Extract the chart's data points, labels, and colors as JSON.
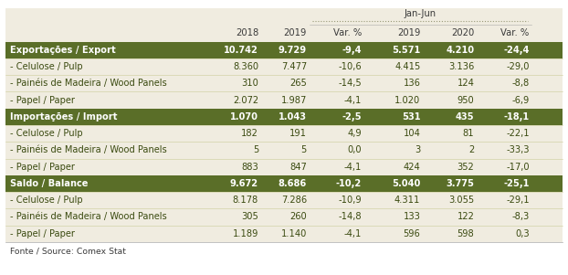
{
  "header_bg": "#f0ece0",
  "header_text": "#3a3a3a",
  "bold_row_bg": "#5a6e28",
  "bold_row_text": "#ffffff",
  "normal_row_text": "#3a4a10",
  "footer_text": "#3a3a3a",
  "title_2018": "2018",
  "title_2019": "2019",
  "title_var": "Var. %",
  "title_janjun": "Jan-Jun",
  "title_janjun_2019": "2019",
  "title_janjun_2020": "2020",
  "title_janjun_var": "Var. %",
  "footer": "Fonte / Source: Comex Stat",
  "rows": [
    {
      "label": "Exportações / Export",
      "bold": true,
      "v2018": "10.742",
      "v2019": "9.729",
      "var": "-9,4",
      "jj2019": "5.571",
      "jj2020": "4.210",
      "jjvar": "-24,4"
    },
    {
      "label": "- Celulose / Pulp",
      "bold": false,
      "v2018": "8.360",
      "v2019": "7.477",
      "var": "-10,6",
      "jj2019": "4.415",
      "jj2020": "3.136",
      "jjvar": "-29,0"
    },
    {
      "label": "- Painéis de Madeira / Wood Panels",
      "bold": false,
      "v2018": "310",
      "v2019": "265",
      "var": "-14,5",
      "jj2019": "136",
      "jj2020": "124",
      "jjvar": "-8,8"
    },
    {
      "label": "- Papel / Paper",
      "bold": false,
      "v2018": "2.072",
      "v2019": "1.987",
      "var": "-4,1",
      "jj2019": "1.020",
      "jj2020": "950",
      "jjvar": "-6,9"
    },
    {
      "label": "Importações / Import",
      "bold": true,
      "v2018": "1.070",
      "v2019": "1.043",
      "var": "-2,5",
      "jj2019": "531",
      "jj2020": "435",
      "jjvar": "-18,1"
    },
    {
      "label": "- Celulose / Pulp",
      "bold": false,
      "v2018": "182",
      "v2019": "191",
      "var": "4,9",
      "jj2019": "104",
      "jj2020": "81",
      "jjvar": "-22,1"
    },
    {
      "label": "- Painéis de Madeira / Wood Panels",
      "bold": false,
      "v2018": "5",
      "v2019": "5",
      "var": "0,0",
      "jj2019": "3",
      "jj2020": "2",
      "jjvar": "-33,3"
    },
    {
      "label": "- Papel / Paper",
      "bold": false,
      "v2018": "883",
      "v2019": "847",
      "var": "-4,1",
      "jj2019": "424",
      "jj2020": "352",
      "jjvar": "-17,0"
    },
    {
      "label": "Saldo / Balance",
      "bold": true,
      "v2018": "9.672",
      "v2019": "8.686",
      "var": "-10,2",
      "jj2019": "5.040",
      "jj2020": "3.775",
      "jjvar": "-25,1"
    },
    {
      "label": "- Celulose / Pulp",
      "bold": false,
      "v2018": "8.178",
      "v2019": "7.286",
      "var": "-10,9",
      "jj2019": "4.311",
      "jj2020": "3.055",
      "jjvar": "-29,1"
    },
    {
      "label": "- Painéis de Madeira / Wood Panels",
      "bold": false,
      "v2018": "305",
      "v2019": "260",
      "var": "-14,8",
      "jj2019": "133",
      "jj2020": "122",
      "jjvar": "-8,3"
    },
    {
      "label": "- Papel / Paper",
      "bold": false,
      "v2018": "1.189",
      "v2019": "1.140",
      "var": "-4,1",
      "jj2019": "596",
      "jj2020": "598",
      "jjvar": "0,3"
    }
  ]
}
